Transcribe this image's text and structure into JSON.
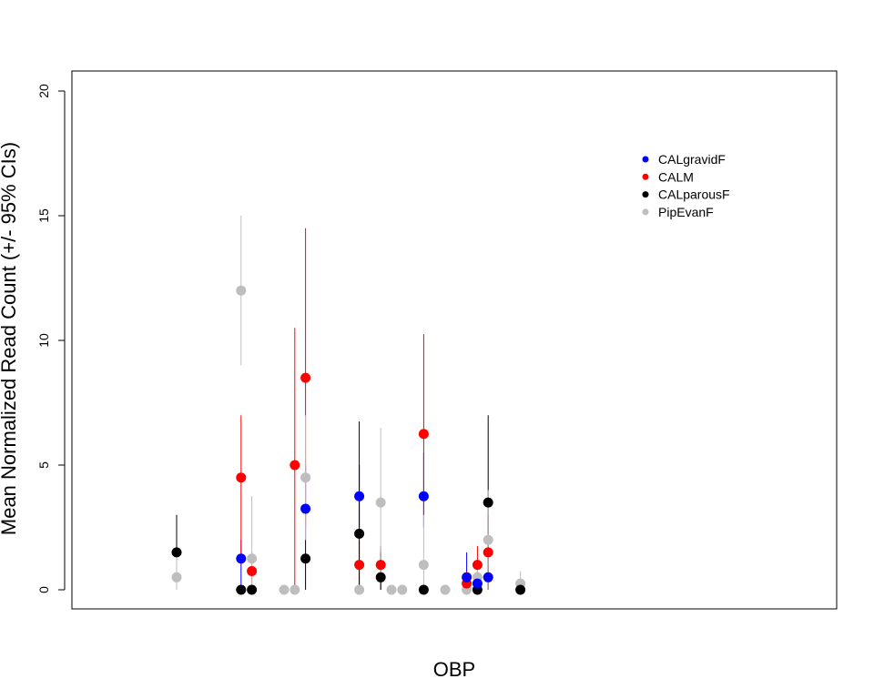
{
  "chart_data": {
    "type": "scatter",
    "title": "",
    "xlabel": "OBP",
    "ylabel": "Mean Normalized Read Count (+/- 95% CIs)",
    "ylim": [
      0,
      20
    ],
    "yticks": [
      "0",
      "5",
      "10",
      "15",
      "20"
    ],
    "xticks_visible": false,
    "grid": false,
    "legend_position": "top-right",
    "series": [
      {
        "name": "CALgravidF",
        "color": "#0000FF",
        "points": [
          {
            "x": 6,
            "y": 1.25,
            "lo": 0,
            "hi": 2
          },
          {
            "x": 12,
            "y": 3.25,
            "lo": 2,
            "hi": 5
          },
          {
            "x": 17,
            "y": 3.75,
            "lo": 2.5,
            "hi": 5
          },
          {
            "x": 23,
            "y": 3.75,
            "lo": 2.5,
            "hi": 5.5
          },
          {
            "x": 27,
            "y": 0.5,
            "lo": 0,
            "hi": 1.5
          },
          {
            "x": 28,
            "y": 0.25,
            "lo": 0,
            "hi": 0.75
          },
          {
            "x": 29,
            "y": 0.5,
            "lo": 0,
            "hi": 1
          }
        ]
      },
      {
        "name": "CALM",
        "color": "#FF0000",
        "points": [
          {
            "x": 6,
            "y": 4.5,
            "lo": 1,
            "hi": 7
          },
          {
            "x": 7,
            "y": 0.75,
            "lo": 0,
            "hi": 1.5
          },
          {
            "x": 11,
            "y": 5,
            "lo": 0,
            "hi": 10.5
          },
          {
            "x": 12,
            "y": 8.5,
            "lo": 2.5,
            "hi": 14.5
          },
          {
            "x": 17,
            "y": 1,
            "lo": 0,
            "hi": 2
          },
          {
            "x": 19,
            "y": 1,
            "lo": 0,
            "hi": 1.75
          },
          {
            "x": 23,
            "y": 6.25,
            "lo": 3,
            "hi": 10.25
          },
          {
            "x": 27,
            "y": 0.25,
            "lo": 0,
            "hi": 0.75
          },
          {
            "x": 28,
            "y": 1,
            "lo": 0,
            "hi": 1.75
          },
          {
            "x": 29,
            "y": 1.5,
            "lo": 0,
            "hi": 3
          }
        ]
      },
      {
        "name": "CALparousF",
        "color": "#000000",
        "points": [
          {
            "x": 0,
            "y": 1.5,
            "lo": 0,
            "hi": 3
          },
          {
            "x": 6,
            "y": 0,
            "lo": 0,
            "hi": 0
          },
          {
            "x": 7,
            "y": 0,
            "lo": 0,
            "hi": 0
          },
          {
            "x": 12,
            "y": 1.25,
            "lo": 0,
            "hi": 2
          },
          {
            "x": 17,
            "y": 2.25,
            "lo": 0,
            "hi": 6.75
          },
          {
            "x": 19,
            "y": 0.5,
            "lo": 0,
            "hi": 1.5
          },
          {
            "x": 23,
            "y": 0,
            "lo": 0,
            "hi": 0
          },
          {
            "x": 28,
            "y": 0,
            "lo": 0,
            "hi": 0
          },
          {
            "x": 29,
            "y": 3.5,
            "lo": 0,
            "hi": 7
          },
          {
            "x": 32,
            "y": 0,
            "lo": 0,
            "hi": 0
          }
        ]
      },
      {
        "name": "PipEvanF",
        "color": "#BEBEBE",
        "points": [
          {
            "x": 0,
            "y": 0.5,
            "lo": 0,
            "hi": 1.5
          },
          {
            "x": 6,
            "y": 12,
            "lo": 9,
            "hi": 15
          },
          {
            "x": 7,
            "y": 1.25,
            "lo": 0,
            "hi": 3.75
          },
          {
            "x": 10,
            "y": 0,
            "lo": 0,
            "hi": 0
          },
          {
            "x": 11,
            "y": 0,
            "lo": 0,
            "hi": 0
          },
          {
            "x": 12,
            "y": 4.5,
            "lo": 2,
            "hi": 7
          },
          {
            "x": 17,
            "y": 0,
            "lo": 0,
            "hi": 0
          },
          {
            "x": 19,
            "y": 3.5,
            "lo": 0.5,
            "hi": 6.5
          },
          {
            "x": 20,
            "y": 0,
            "lo": 0,
            "hi": 0
          },
          {
            "x": 21,
            "y": 0,
            "lo": 0,
            "hi": 0
          },
          {
            "x": 23,
            "y": 1,
            "lo": 0,
            "hi": 3
          },
          {
            "x": 25,
            "y": 0,
            "lo": 0,
            "hi": 0
          },
          {
            "x": 27,
            "y": 0,
            "lo": 0,
            "hi": 0
          },
          {
            "x": 28,
            "y": 0.5,
            "lo": 0,
            "hi": 1
          },
          {
            "x": 29,
            "y": 2,
            "lo": 0,
            "hi": 4
          },
          {
            "x": 32,
            "y": 0.25,
            "lo": 0,
            "hi": 0.75
          }
        ]
      }
    ]
  }
}
